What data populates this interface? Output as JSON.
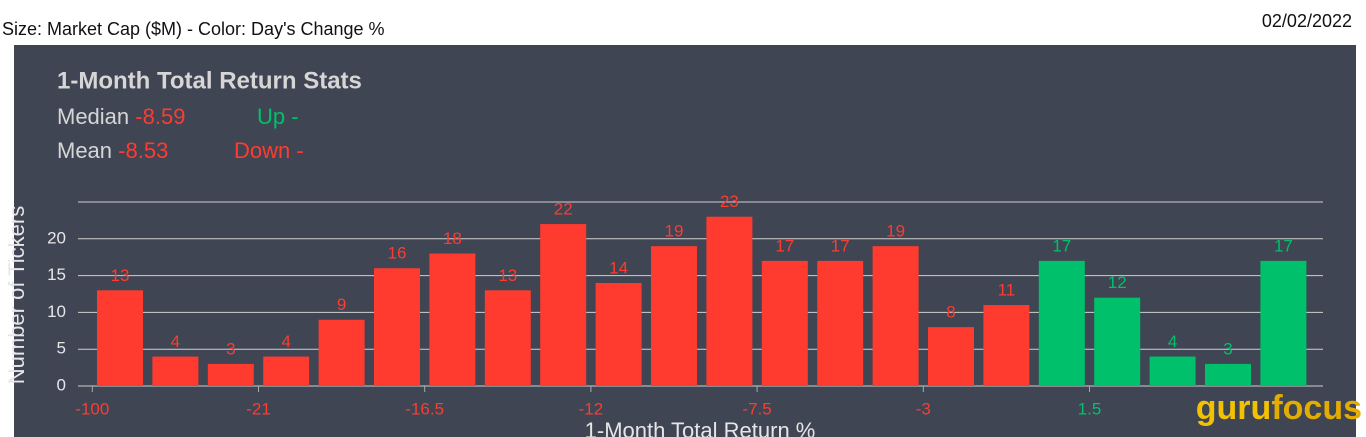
{
  "header": {
    "left": "Size: Market Cap ($M) - Color: Day's Change %",
    "right": "02/02/2022"
  },
  "chart_data": {
    "type": "bar",
    "title": "1-Month Total Return Stats",
    "stats": {
      "median_label": "Median",
      "median": -8.59,
      "up_label": "Up",
      "up": "-",
      "mean_label": "Mean",
      "mean": -8.53,
      "down_label": "Down",
      "down": "-"
    },
    "y_label": "Number of Tickers",
    "x_label": "1-Month Total Return %",
    "edge_labels": [
      "-100",
      null,
      null,
      "-21",
      null,
      null,
      "-16.5",
      null,
      null,
      "-12",
      null,
      null,
      "-7.5",
      null,
      null,
      "-3",
      null,
      null,
      "1.5",
      null,
      null,
      null,
      null
    ],
    "values": [
      13,
      4,
      3,
      4,
      9,
      16,
      18,
      13,
      22,
      14,
      19,
      23,
      17,
      17,
      19,
      8,
      11,
      17,
      12,
      4,
      3,
      17
    ],
    "colors": [
      "#ff3b2f",
      "#ff3b2f",
      "#ff3b2f",
      "#ff3b2f",
      "#ff3b2f",
      "#ff3b2f",
      "#ff3b2f",
      "#ff3b2f",
      "#ff3b2f",
      "#ff3b2f",
      "#ff3b2f",
      "#ff3b2f",
      "#ff3b2f",
      "#ff3b2f",
      "#ff3b2f",
      "#ff3b2f",
      "#ff3b2f",
      "#00c06b",
      "#00c06b",
      "#00c06b",
      "#00c06b",
      "#00c06b"
    ],
    "ylim": [
      0,
      25
    ],
    "yticks": [
      0,
      5,
      10,
      15,
      20
    ],
    "grid": true
  },
  "logo": {
    "part1": "guru",
    "part2": "focus"
  }
}
